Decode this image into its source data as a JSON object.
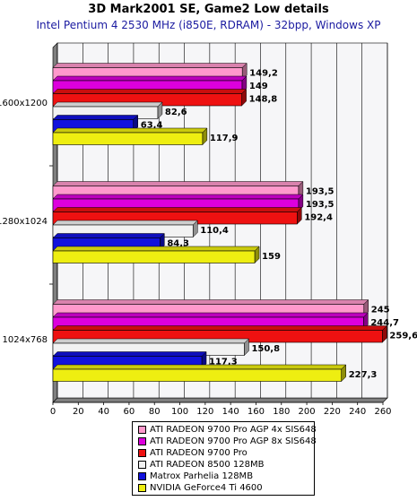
{
  "chart_data": {
    "type": "bar",
    "orientation": "horizontal",
    "title": "3D Mark2001 SE,  Game2 Low details",
    "subtitle": "Intel Pentium 4 2530 MHz (i850E, RDRAM) - 32bpp, Windows XP",
    "categories": [
      "1600x1200",
      "1280x1024",
      "1024x768"
    ],
    "xlim": [
      0,
      260
    ],
    "xticks": [
      0,
      20,
      40,
      60,
      80,
      100,
      120,
      140,
      160,
      180,
      200,
      220,
      240,
      260
    ],
    "grid": "vertical",
    "legend_position": "bottom",
    "series": [
      {
        "name": "ATI RADEON 9700 Pro AGP 4x SIS648",
        "color": "#ff99cc",
        "values": [
          149.2,
          193.5,
          245
        ],
        "labels": [
          "149,2",
          "193,5",
          "245"
        ]
      },
      {
        "name": "ATI RADEON 9700 Pro AGP 8x SIS648",
        "color": "#dd00dd",
        "values": [
          149,
          193.5,
          244.7
        ],
        "labels": [
          "149",
          "193,5",
          "244,7"
        ]
      },
      {
        "name": "ATI RADEON 9700 Pro",
        "color": "#ee1111",
        "values": [
          148.8,
          192.4,
          259.6
        ],
        "labels": [
          "148,8",
          "192,4",
          "259,6"
        ]
      },
      {
        "name": "ATI RADEON 8500 128MB",
        "color": "#f2f2f2",
        "values": [
          82.6,
          110.4,
          150.8
        ],
        "labels": [
          "82,6",
          "110,4",
          "150,8"
        ]
      },
      {
        "name": "Matrox Parhelia 128MB",
        "color": "#1111dd",
        "values": [
          63.4,
          84.3,
          117.3
        ],
        "labels": [
          "63,4",
          "84,3",
          "117,3"
        ]
      },
      {
        "name": "NVIDIA GeForce4 Ti 4600",
        "color": "#eeee11",
        "values": [
          117.9,
          159,
          227.3
        ],
        "labels": [
          "117,9",
          "159",
          "227,3"
        ]
      }
    ]
  }
}
